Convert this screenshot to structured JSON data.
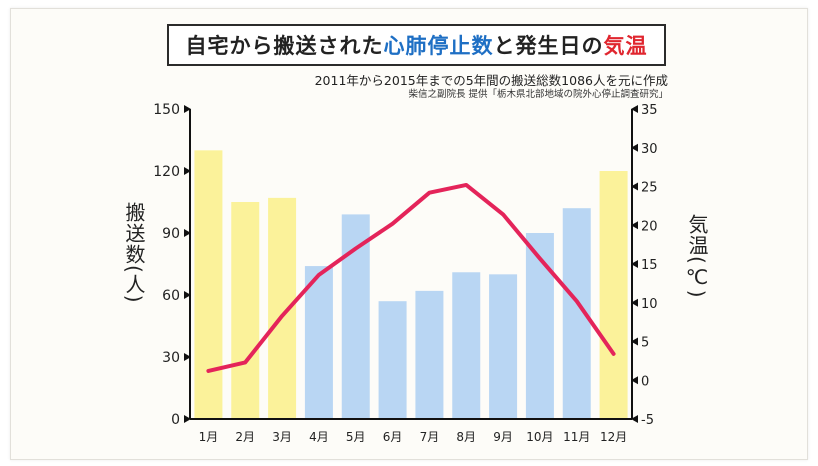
{
  "title": {
    "part1": "自宅から搬送された",
    "part2": "心肺停止数",
    "part3": "と発生日の",
    "part4": "気温"
  },
  "subtitle": "2011年から2015年までの5年間の搬送総数1086人を元に作成",
  "credit": "柴信之副院長 提供「栃木県北部地域の院外心停止調査研究」",
  "colors": {
    "bar_winter": "#fbf29a",
    "bar_other": "#b9d6f3",
    "line": "#e4245a",
    "axis": "#111111"
  },
  "chart_data": {
    "type": "bar",
    "title": "",
    "categories": [
      "1月",
      "2月",
      "3月",
      "4月",
      "5月",
      "6月",
      "7月",
      "8月",
      "9月",
      "10月",
      "11月",
      "12月"
    ],
    "series": [
      {
        "values": [
          130,
          105,
          107,
          74,
          99,
          57,
          62,
          71,
          70,
          90,
          102,
          120
        ],
        "bar_colors": [
          "winter",
          "winter",
          "winter",
          "other",
          "other",
          "other",
          "other",
          "other",
          "other",
          "other",
          "other",
          "winter"
        ]
      },
      {
        "type": "line",
        "axis": "right",
        "values": [
          1.2,
          2.3,
          8.3,
          13.6,
          17.0,
          20.2,
          24.2,
          25.2,
          21.4,
          15.7,
          10.2,
          3.4
        ]
      }
    ],
    "ylabel": "搬送数(人)",
    "ylabel_right": "気温(℃)",
    "ylim": [
      0,
      150
    ],
    "yticks": [
      0,
      30,
      60,
      90,
      120,
      150
    ],
    "ylim_right": [
      -5,
      35
    ],
    "yticks_right": [
      -5,
      0,
      5,
      10,
      15,
      20,
      25,
      30,
      35
    ],
    "grid": false,
    "legend": "none"
  }
}
